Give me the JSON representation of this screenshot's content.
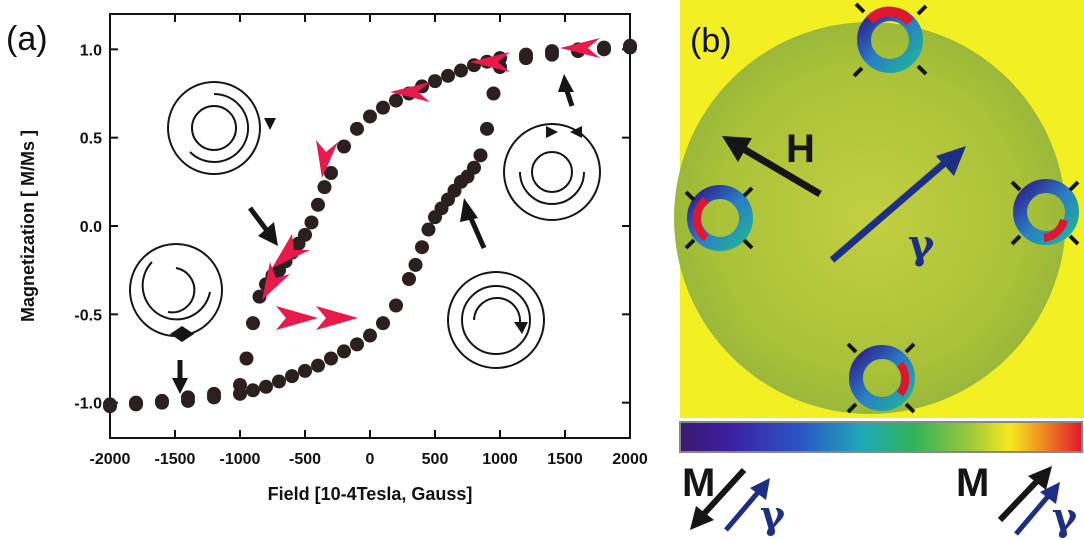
{
  "colors": {
    "data_points": "#2b1f1f",
    "arrow_marker": "#e8194b",
    "black_arrow": "#151515",
    "blue_arrow": "#1d2f85",
    "background_map": "#f2ef22",
    "disc_fill": "#b9c83c"
  },
  "panel_a": {
    "label": "(a)",
    "chart_data": {
      "type": "scatter",
      "xlabel": "Field [10-4Tesla, Gauss]",
      "ylabel": "Magnetization [ M/Ms ]",
      "xlim": [
        -2000,
        2000
      ],
      "ylim": [
        -1.2,
        1.2
      ],
      "xticks": [
        "-2000",
        "-1500",
        "-1000",
        "-500",
        "0",
        "500",
        "1000",
        "1500",
        "2000"
      ],
      "yticks": [
        "-1.0",
        "-0.5",
        "0.0",
        "0.5",
        "1.0"
      ],
      "series": [
        {
          "branch": "decreasing",
          "x": [
            2000,
            1800,
            1600,
            1400,
            1200,
            1000,
            900,
            800,
            700,
            600,
            500,
            400,
            300,
            200,
            100,
            0,
            -100,
            -200,
            -300,
            -350,
            -400,
            -450,
            -500,
            -550,
            -600,
            -650,
            -700,
            -750,
            -800,
            -850,
            -900,
            -950,
            -1000,
            -1200,
            -1400,
            -1600,
            -1800,
            -2000
          ],
          "y": [
            1.02,
            1.01,
            1.0,
            0.99,
            0.97,
            0.95,
            0.93,
            0.91,
            0.88,
            0.85,
            0.82,
            0.79,
            0.75,
            0.71,
            0.67,
            0.62,
            0.55,
            0.45,
            0.3,
            0.22,
            0.12,
            0.02,
            -0.05,
            -0.1,
            -0.15,
            -0.2,
            -0.25,
            -0.28,
            -0.33,
            -0.4,
            -0.55,
            -0.75,
            -0.9,
            -0.95,
            -0.97,
            -0.99,
            -1.0,
            -1.01
          ]
        },
        {
          "branch": "increasing",
          "x": [
            -2000,
            -1800,
            -1600,
            -1400,
            -1200,
            -1000,
            -900,
            -800,
            -700,
            -600,
            -500,
            -400,
            -300,
            -200,
            -100,
            0,
            100,
            200,
            300,
            350,
            400,
            450,
            500,
            550,
            600,
            650,
            700,
            750,
            800,
            850,
            900,
            950,
            1000,
            1200,
            1400,
            1600,
            1800,
            2000
          ],
          "y": [
            -1.02,
            -1.01,
            -1.0,
            -0.99,
            -0.97,
            -0.95,
            -0.93,
            -0.91,
            -0.88,
            -0.85,
            -0.82,
            -0.79,
            -0.75,
            -0.71,
            -0.67,
            -0.62,
            -0.55,
            -0.45,
            -0.3,
            -0.22,
            -0.12,
            -0.02,
            0.05,
            0.1,
            0.15,
            0.2,
            0.25,
            0.28,
            0.33,
            0.4,
            0.55,
            0.75,
            0.9,
            0.95,
            0.97,
            0.99,
            1.0,
            1.01
          ]
        }
      ],
      "grid": false
    }
  },
  "panel_b": {
    "label": "(b)",
    "field_label": "H",
    "gamma_label": "γ",
    "legend_left_m": "M",
    "legend_left_gamma": "γ",
    "legend_right_m": "M",
    "legend_right_gamma": "γ"
  }
}
